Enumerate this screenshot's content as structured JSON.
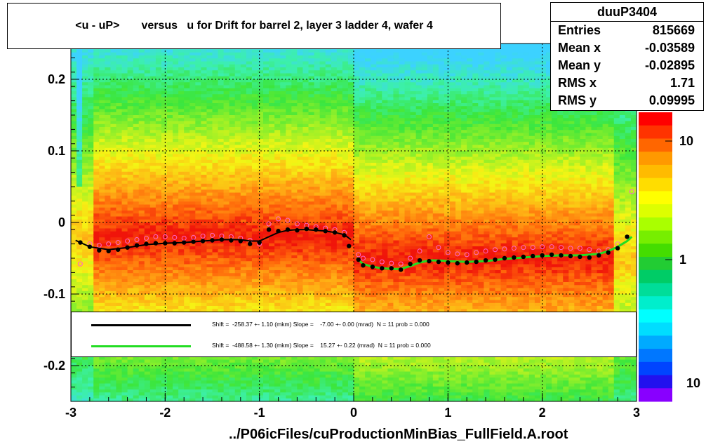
{
  "title": "<u - uP>       versus   u for Drift for barrel 2, layer 3 ladder 4, wafer 4",
  "stats": {
    "name": "duuP3404",
    "rows": [
      {
        "label": "Entries",
        "value": "815669"
      },
      {
        "label": "Mean x",
        "value": "-0.03589"
      },
      {
        "label": "Mean y",
        "value": "-0.02895"
      },
      {
        "label": "RMS x",
        "value": "1.71"
      },
      {
        "label": "RMS y",
        "value": "0.09995"
      }
    ]
  },
  "legend": [
    {
      "color": "#000000",
      "text": "Shift =  -258.37 +- 1.10 (mkm) Slope =    -7.00 +- 0.00 (mrad)  N = 11 prob = 0.000"
    },
    {
      "color": "#22dd22",
      "text": "Shift =  -488.58 +- 1.30 (mkm) Slope =    15.27 +- 0.22 (mrad)  N = 11 prob = 0.000"
    }
  ],
  "footer": "../P06icFiles/cuProductionMinBias_FullField.A.root",
  "colors": {
    "dots": "#000000",
    "open_markers": "#ff66cc",
    "fit_left": "#000000",
    "fit_right": "#22dd22"
  },
  "chart_data": {
    "type": "heatmap",
    "title": "<u - uP>       versus   u for Drift for barrel 2, layer 3 ladder 4, wafer 4",
    "xlim": [
      -3,
      3
    ],
    "ylim": [
      -0.25,
      0.25
    ],
    "x_ticks": [
      "-3",
      "-2",
      "-1",
      "0",
      "1",
      "2",
      "3"
    ],
    "y_ticks": [
      "-0.2",
      "-0.1",
      "0",
      "0.1",
      "0.2"
    ],
    "z_scale": "log",
    "z_ticks": [
      "1",
      "10"
    ],
    "z_tick_partial": "10",
    "grid": true,
    "profile_means": {
      "x": [
        -2.9,
        -2.8,
        -2.7,
        -2.6,
        -2.5,
        -2.4,
        -2.3,
        -2.2,
        -2.1,
        -2.0,
        -1.9,
        -1.8,
        -1.7,
        -1.6,
        -1.5,
        -1.4,
        -1.3,
        -1.2,
        -1.1,
        -1.0,
        -0.9,
        -0.8,
        -0.7,
        -0.6,
        -0.5,
        -0.4,
        -0.3,
        -0.2,
        -0.1,
        -0.05,
        0.05,
        0.1,
        0.2,
        0.3,
        0.4,
        0.5,
        0.6,
        0.7,
        0.8,
        0.9,
        1.0,
        1.1,
        1.2,
        1.3,
        1.4,
        1.5,
        1.6,
        1.7,
        1.8,
        1.9,
        2.0,
        2.1,
        2.2,
        2.3,
        2.4,
        2.5,
        2.6,
        2.7,
        2.8,
        2.9
      ],
      "y": [
        -0.028,
        -0.034,
        -0.039,
        -0.04,
        -0.038,
        -0.035,
        -0.032,
        -0.03,
        -0.029,
        -0.029,
        -0.029,
        -0.028,
        -0.027,
        -0.026,
        -0.025,
        -0.024,
        -0.025,
        -0.026,
        -0.03,
        -0.028,
        -0.01,
        -0.012,
        -0.01,
        -0.011,
        -0.009,
        -0.01,
        -0.012,
        -0.014,
        -0.018,
        -0.033,
        -0.052,
        -0.06,
        -0.062,
        -0.064,
        -0.064,
        -0.066,
        -0.058,
        -0.053,
        -0.054,
        -0.055,
        -0.056,
        -0.057,
        -0.056,
        -0.055,
        -0.053,
        -0.052,
        -0.05,
        -0.049,
        -0.048,
        -0.047,
        -0.046,
        -0.045,
        -0.046,
        -0.047,
        -0.048,
        -0.049,
        -0.046,
        -0.042,
        -0.036,
        -0.02
      ]
    },
    "profile_open": {
      "x": [
        -2.9,
        -2.8,
        -2.7,
        -2.6,
        -2.5,
        -2.4,
        -2.3,
        -2.2,
        -2.1,
        -2.0,
        -1.9,
        -1.8,
        -1.7,
        -1.6,
        -1.5,
        -1.4,
        -1.3,
        -1.2,
        -1.1,
        -1.0,
        -0.9,
        -0.8,
        -0.7,
        -0.6,
        -0.5,
        -0.4,
        -0.3,
        -0.2,
        -0.1,
        0.05,
        0.1,
        0.2,
        0.3,
        0.4,
        0.5,
        0.6,
        0.7,
        0.8,
        0.9,
        1.0,
        1.1,
        1.2,
        1.3,
        1.4,
        1.5,
        1.6,
        1.7,
        1.8,
        1.9,
        2.0,
        2.1,
        2.2,
        2.3,
        2.4,
        2.5,
        2.6,
        2.7,
        2.8,
        2.95
      ],
      "y": [
        -0.058,
        -0.03,
        -0.032,
        -0.03,
        -0.028,
        -0.026,
        -0.024,
        -0.022,
        -0.02,
        -0.02,
        -0.021,
        -0.022,
        -0.021,
        -0.019,
        -0.018,
        -0.019,
        -0.02,
        -0.022,
        -0.025,
        -0.03,
        -0.002,
        0.005,
        0.003,
        -0.002,
        -0.004,
        -0.006,
        -0.008,
        -0.01,
        -0.014,
        -0.045,
        -0.05,
        -0.052,
        -0.055,
        -0.057,
        -0.058,
        -0.05,
        -0.04,
        -0.02,
        -0.035,
        -0.042,
        -0.044,
        -0.045,
        -0.042,
        -0.04,
        -0.038,
        -0.037,
        -0.036,
        -0.035,
        -0.035,
        -0.034,
        -0.034,
        -0.035,
        -0.036,
        -0.036,
        -0.038,
        -0.04,
        -0.038,
        -0.03,
        0.043
      ]
    },
    "fit_left": {
      "x": [
        -2.95,
        -2.8,
        -2.6,
        -2.4,
        -2.2,
        -2.0,
        -1.8,
        -1.6,
        -1.4,
        -1.2,
        -1.1,
        -1.0,
        -0.9,
        -0.8,
        -0.7,
        -0.6,
        -0.5,
        -0.4,
        -0.3,
        -0.2,
        -0.1,
        -0.03
      ],
      "y": [
        -0.025,
        -0.034,
        -0.038,
        -0.035,
        -0.031,
        -0.029,
        -0.028,
        -0.026,
        -0.024,
        -0.024,
        -0.026,
        -0.026,
        -0.02,
        -0.014,
        -0.011,
        -0.01,
        -0.01,
        -0.011,
        -0.012,
        -0.014,
        -0.017,
        -0.024
      ]
    },
    "fit_right": {
      "x": [
        0.03,
        0.1,
        0.2,
        0.3,
        0.4,
        0.5,
        0.6,
        0.7,
        0.8,
        0.9,
        1.0,
        1.2,
        1.4,
        1.6,
        1.8,
        2.0,
        2.2,
        2.4,
        2.6,
        2.7,
        2.8,
        2.9,
        2.95
      ],
      "y": [
        -0.05,
        -0.058,
        -0.062,
        -0.064,
        -0.065,
        -0.065,
        -0.061,
        -0.056,
        -0.053,
        -0.053,
        -0.054,
        -0.055,
        -0.054,
        -0.051,
        -0.049,
        -0.047,
        -0.046,
        -0.046,
        -0.044,
        -0.04,
        -0.034,
        -0.026,
        -0.02
      ]
    }
  }
}
